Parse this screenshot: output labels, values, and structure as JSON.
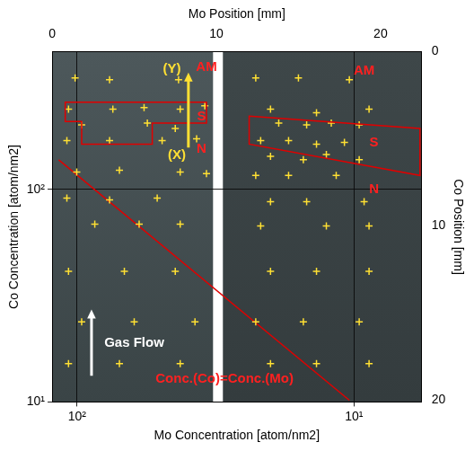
{
  "chart_data": {
    "type": "scatter",
    "axes": [
      {
        "position": "top",
        "title": "Mo Position [mm]",
        "lim": [
          0,
          22.5
        ],
        "ticks": [
          0,
          10,
          20
        ]
      },
      {
        "position": "bottom",
        "title": "Mo Concentration [atom/nm2]",
        "log": true,
        "grid": true,
        "lim": [
          123,
          5.7
        ],
        "ticks": [
          {
            "value": 100,
            "label": "10²"
          },
          {
            "value": 10,
            "label": "10¹"
          }
        ]
      },
      {
        "position": "left",
        "title": "Co Concentration [atom/nm2]",
        "log": true,
        "grid": true,
        "lim": [
          10,
          445
        ],
        "ticks": [
          {
            "value": 10,
            "label": "10¹"
          },
          {
            "value": 100,
            "label": "10²"
          }
        ]
      },
      {
        "position": "right",
        "title": "Co Position [mm]",
        "lim": [
          20.1,
          0
        ],
        "ticks": [
          0,
          10,
          20
        ]
      }
    ],
    "substrates": [
      [
        0,
        9.8
      ],
      [
        10.4,
        22.5
      ]
    ],
    "series": [
      {
        "type": "scatter",
        "color": "#ffe033",
        "marker": "cross",
        "x": [
          1.4,
          3.5,
          7.7,
          1.0,
          3.7,
          5.6,
          7.8,
          9.3,
          1.8,
          5.8,
          7.5,
          0.9,
          3.5,
          6.7,
          8.8,
          1.5,
          4.1,
          7.8,
          9.4,
          0.9,
          3.5,
          6.4,
          2.6,
          5.3,
          7.8,
          1.0,
          4.4,
          7.5,
          1.8,
          5.0,
          8.7,
          1.0,
          4.1,
          7.8,
          12.4,
          15.0,
          18.1,
          13.3,
          16.1,
          19.3,
          13.8,
          15.5,
          17.0,
          18.7,
          12.7,
          14.4,
          16.1,
          17.8,
          13.3,
          15.3,
          16.7,
          18.7,
          12.4,
          14.4,
          17.3,
          13.3,
          15.5,
          19.0,
          12.7,
          16.7,
          19.3,
          13.3,
          16.1,
          19.3,
          12.4,
          15.3,
          18.7,
          13.3,
          16.1,
          19.3
        ],
        "y": [
          1.5,
          1.6,
          1.6,
          3.3,
          3.3,
          3.2,
          3.3,
          3.1,
          4.2,
          4.1,
          4.4,
          5.1,
          5.1,
          5.1,
          5.0,
          6.9,
          6.8,
          6.9,
          7.0,
          8.4,
          8.5,
          8.4,
          9.9,
          9.9,
          9.9,
          12.6,
          12.6,
          12.6,
          15.5,
          15.5,
          15.5,
          17.9,
          17.9,
          17.9,
          1.5,
          1.5,
          1.6,
          3.3,
          3.5,
          3.3,
          4.1,
          4.2,
          4.1,
          4.2,
          5.1,
          5.1,
          5.3,
          5.2,
          6.0,
          6.2,
          5.9,
          6.2,
          7.1,
          7.1,
          7.1,
          8.6,
          8.6,
          8.6,
          10.0,
          10.0,
          10.0,
          12.6,
          12.6,
          12.6,
          15.5,
          15.5,
          15.5,
          17.9,
          17.9,
          17.9
        ]
      },
      {
        "type": "line",
        "color": "#e00000",
        "line_style": "solid",
        "x": [
          0.4,
          18.1
        ],
        "y": [
          6.2,
          20.0
        ]
      }
    ],
    "regions": [
      {
        "color": "#e00000",
        "x": [
          0.8,
          9.4,
          9.4,
          6.1,
          6.1,
          1.8,
          1.8,
          0.8
        ],
        "y": [
          2.9,
          2.9,
          4.1,
          4.1,
          5.3,
          5.3,
          4.0,
          4.0
        ]
      },
      {
        "color": "#e00000",
        "x": [
          12.0,
          22.4,
          22.4,
          12.0
        ],
        "y": [
          3.7,
          4.4,
          7.1,
          5.3
        ]
      }
    ],
    "annotations": [
      {
        "text": "AM",
        "x": 9.4,
        "y": 0.9,
        "color": "#ff2020"
      },
      {
        "text": "S",
        "x": 9.1,
        "y": 3.75,
        "color": "#ff2020"
      },
      {
        "text": "N",
        "x": 9.1,
        "y": 5.6,
        "color": "#ff2020"
      },
      {
        "text": "(Y)",
        "x": 7.3,
        "y": 1.0,
        "color": "#ffe033"
      },
      {
        "text": "(X)",
        "x": 7.6,
        "y": 5.95,
        "color": "#ffe033"
      },
      {
        "text": "AM",
        "x": 19.0,
        "y": 1.1,
        "color": "#ff2020"
      },
      {
        "text": "S",
        "x": 19.6,
        "y": 5.2,
        "color": "#ff2020"
      },
      {
        "text": "N",
        "x": 19.6,
        "y": 7.9,
        "color": "#ff2020"
      },
      {
        "text": "Gas Flow",
        "x": 5.0,
        "y": 16.7,
        "color": "#ffffff"
      },
      {
        "text": "Conc.(Co)=Conc.(Mo)",
        "x": 10.5,
        "y": 18.8,
        "color": "#ff2020"
      }
    ],
    "arrows": [
      {
        "color": "#ffe033",
        "from": [
          8.3,
          5.5
        ],
        "to": [
          8.3,
          1.2
        ]
      },
      {
        "color": "#ffffff",
        "from": [
          2.4,
          18.6
        ],
        "to": [
          2.4,
          14.8
        ]
      }
    ]
  }
}
